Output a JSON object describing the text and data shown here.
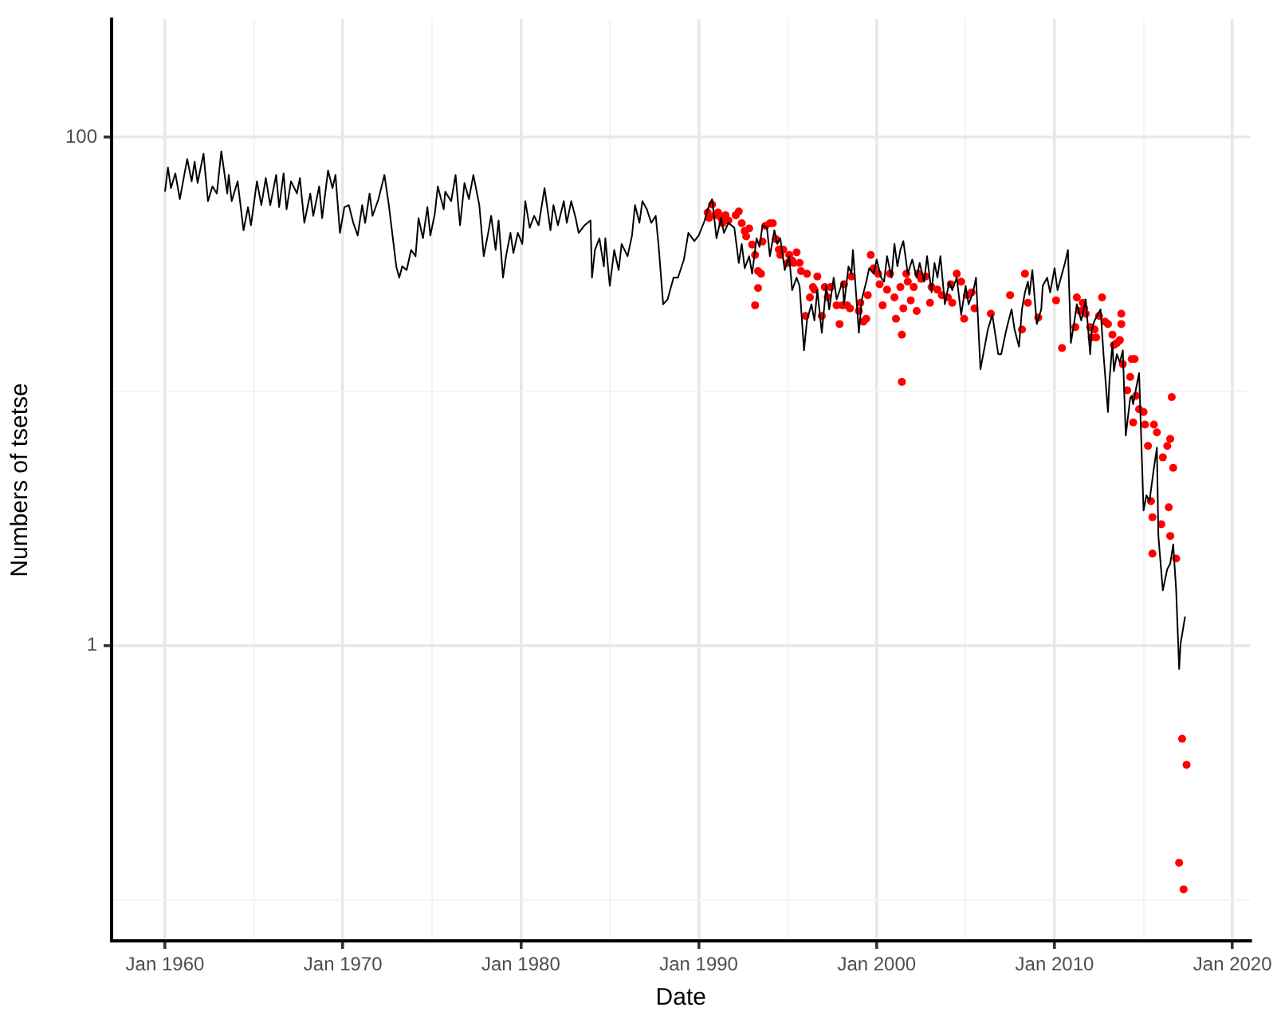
{
  "chart_data": {
    "type": "line",
    "xlabel": "Date",
    "ylabel": "Numbers of tsetse",
    "log": "y",
    "grid": true,
    "legend": false,
    "xlim": [
      "1957-01",
      "2021-01"
    ],
    "ylim": [
      0.069,
      291
    ],
    "xticks": [
      {
        "value": "1960-01",
        "label": "Jan 1960"
      },
      {
        "value": "1965-01",
        "label": null
      },
      {
        "value": "1970-01",
        "label": "Jan 1970"
      },
      {
        "value": "1975-01",
        "label": null
      },
      {
        "value": "1980-01",
        "label": "Jan 1980"
      },
      {
        "value": "1985-01",
        "label": null
      },
      {
        "value": "1990-01",
        "label": "Jan 1990"
      },
      {
        "value": "1995-01",
        "label": null
      },
      {
        "value": "2000-01",
        "label": "Jan 2000"
      },
      {
        "value": "2005-01",
        "label": null
      },
      {
        "value": "2010-01",
        "label": "Jan 2010"
      },
      {
        "value": "2015-01",
        "label": null
      },
      {
        "value": "2020-01",
        "label": "Jan 2020"
      }
    ],
    "yticks": [
      {
        "value": 0.1,
        "label": null
      },
      1,
      {
        "value": 10,
        "label": null
      },
      100
    ],
    "series": [
      {
        "type": "line",
        "color": "#000000",
        "marker": "none",
        "line_style": "solid",
        "x": [
          "1960-01",
          "1960-03",
          "1960-05",
          "1960-08",
          "1960-11",
          "1961-04",
          "1961-07",
          "1961-09",
          "1961-11",
          "1962-03",
          "1962-06",
          "1962-09",
          "1962-12",
          "1963-03",
          "1963-07",
          "1963-08",
          "1963-10",
          "1964-02",
          "1964-06",
          "1964-09",
          "1964-11",
          "1965-03",
          "1965-06",
          "1965-09",
          "1965-12",
          "1966-04",
          "1966-06",
          "1966-09",
          "1966-11",
          "1967-02",
          "1967-06",
          "1967-08",
          "1967-11",
          "1968-03",
          "1968-05",
          "1968-09",
          "1968-11",
          "1969-03",
          "1969-06",
          "1969-08",
          "1969-11",
          "1970-02",
          "1970-05",
          "1970-08",
          "1970-11",
          "1971-02",
          "1971-04",
          "1971-07",
          "1971-09",
          "1972-01",
          "1972-05",
          "1972-08",
          "1973-01",
          "1973-03",
          "1973-05",
          "1973-08",
          "1973-11",
          "1974-02",
          "1974-04",
          "1974-07",
          "1974-10",
          "1974-12",
          "1975-03",
          "1975-05",
          "1975-09",
          "1975-10",
          "1976-02",
          "1976-05",
          "1976-08",
          "1976-11",
          "1977-02",
          "1977-05",
          "1977-09",
          "1977-12",
          "1978-03",
          "1978-05",
          "1978-08",
          "1978-10",
          "1979-01",
          "1979-03",
          "1979-06",
          "1979-08",
          "1979-11",
          "1980-02",
          "1980-04",
          "1980-07",
          "1980-10",
          "1981-01",
          "1981-05",
          "1981-09",
          "1981-11",
          "1982-02",
          "1982-06",
          "1982-08",
          "1982-11",
          "1983-02",
          "1983-04",
          "1983-08",
          "1983-12",
          "1984-01",
          "1984-03",
          "1984-06",
          "1984-09",
          "1984-10",
          "1985-01",
          "1985-04",
          "1985-07",
          "1985-09",
          "1986-01",
          "1986-04",
          "1986-06",
          "1986-09",
          "1986-11",
          "1987-02",
          "1987-05",
          "1987-08",
          "1987-10",
          "1988-01",
          "1988-04",
          "1988-08",
          "1988-11",
          "1989-03",
          "1989-06",
          "1989-10",
          "1990-01",
          "1990-05",
          "1990-07",
          "1990-10",
          "1991-01",
          "1991-04",
          "1991-06",
          "1991-09",
          "1992-01",
          "1992-04",
          "1992-06",
          "1992-08",
          "1992-11",
          "1993-01",
          "1993-04",
          "1993-06",
          "1993-08",
          "1993-11",
          "1994-01",
          "1994-04",
          "1994-06",
          "1994-08",
          "1994-11",
          "1995-02",
          "1995-04",
          "1995-07",
          "1995-09",
          "1995-12",
          "1996-02",
          "1996-05",
          "1996-07",
          "1996-09",
          "1996-12",
          "1997-03",
          "1997-05",
          "1997-08",
          "1997-10",
          "1998-02",
          "1998-03",
          "1998-06",
          "1998-08",
          "1998-09",
          "1999-01",
          "1999-03",
          "1999-06",
          "1999-08",
          "1999-11",
          "2000-01",
          "2000-04",
          "2000-06",
          "2000-08",
          "2000-11",
          "2001-01",
          "2001-03",
          "2001-05",
          "2001-07",
          "2001-10",
          "2002-01",
          "2002-04",
          "2002-06",
          "2002-09",
          "2002-11",
          "2003-02",
          "2003-04",
          "2003-06",
          "2003-08",
          "2003-11",
          "2004-02",
          "2004-04",
          "2004-07",
          "2004-10",
          "2005-01",
          "2005-03",
          "2005-06",
          "2005-08",
          "2005-11",
          "2006-04",
          "2006-07",
          "2006-11",
          "2007-01",
          "2007-04",
          "2007-06",
          "2007-08",
          "2007-10",
          "2008-01",
          "2008-03",
          "2008-05",
          "2008-07",
          "2008-08",
          "2008-10",
          "2009-01",
          "2009-04",
          "2009-05",
          "2009-08",
          "2009-10",
          "2010-01",
          "2010-03",
          "2010-06",
          "2010-08",
          "2010-10",
          "2010-12",
          "2011-03",
          "2011-04",
          "2011-07",
          "2011-10",
          "2012-01",
          "2012-02",
          "2012-04",
          "2012-08",
          "2012-10",
          "2013-01",
          "2013-02",
          "2013-04",
          "2013-05",
          "2013-07",
          "2013-09",
          "2013-11",
          "2014-01",
          "2014-04",
          "2014-05",
          "2014-06",
          "2014-08",
          "2014-10",
          "2015-01",
          "2015-03",
          "2015-05",
          "2015-08",
          "2015-10",
          "2015-11",
          "2016-02",
          "2016-05",
          "2016-07",
          "2016-09",
          "2016-11",
          "2017-01",
          "2017-02",
          "2017-05"
        ],
        "values": [
          61,
          76,
          63,
          72,
          57,
          82,
          67,
          80,
          66,
          86,
          56,
          64,
          60,
          88,
          60,
          71,
          56,
          67,
          43,
          53,
          45,
          67,
          54,
          69,
          54,
          71,
          53,
          72,
          52,
          67,
          60,
          69,
          46,
          60,
          49,
          64,
          48,
          74,
          63,
          71,
          42,
          53,
          54,
          46,
          41,
          54,
          46,
          60,
          49,
          57,
          71,
          54,
          31,
          28,
          31,
          30,
          36,
          34,
          48,
          40,
          53,
          41,
          50,
          64,
          52,
          61,
          56,
          71,
          45,
          66,
          57,
          71,
          54,
          34,
          42,
          49,
          36,
          47,
          28,
          34,
          42,
          35,
          42,
          38,
          56,
          44,
          49,
          45,
          63,
          43,
          54,
          45,
          56,
          46,
          56,
          48,
          42,
          45,
          47,
          28,
          36,
          40,
          31,
          40,
          26,
          36,
          30,
          38,
          34,
          41,
          54,
          46,
          56,
          52,
          46,
          49,
          37,
          22,
          23,
          28,
          28,
          33,
          42,
          39,
          41,
          47,
          52,
          57,
          40,
          48,
          42,
          46,
          44,
          32,
          38,
          30.5,
          34,
          29,
          40,
          37,
          45,
          44,
          34,
          43,
          38,
          40,
          30,
          34,
          25,
          28,
          26,
          14.5,
          19,
          22,
          19,
          25,
          17,
          26,
          21,
          28,
          23,
          27,
          22,
          31,
          29,
          36,
          17,
          23,
          27,
          30.5,
          29,
          33,
          28,
          27,
          34,
          28,
          38,
          31,
          36,
          39,
          29,
          33,
          28,
          32,
          27,
          34,
          24.5,
          32,
          28,
          34,
          22,
          27,
          25,
          28,
          20,
          26,
          22,
          24.5,
          28,
          12.2,
          17.5,
          20,
          14,
          14,
          17,
          19,
          21,
          17.5,
          15,
          21,
          24.5,
          27,
          24,
          30,
          18.4,
          21,
          26,
          28,
          24.5,
          30.5,
          25,
          29,
          32,
          36,
          15.5,
          20,
          22,
          19,
          23,
          14,
          17.5,
          19,
          21,
          14,
          8.3,
          11,
          15.5,
          12,
          14,
          13,
          14.5,
          6.7,
          9.4,
          9.6,
          8.9,
          10.3,
          11.8,
          3.4,
          3.9,
          3.7,
          5.0,
          6.0,
          2.7,
          1.65,
          2.0,
          2.1,
          2.5,
          1.65,
          0.81,
          1.02,
          1.3
        ]
      },
      {
        "type": "scatter",
        "color": "#ff0000",
        "marker": "circle",
        "x": [
          "1990-07",
          "1990-08",
          "1990-10",
          "1990-12",
          "1991-02",
          "1991-04",
          "1991-05",
          "1991-07",
          "1991-09",
          "1992-02",
          "1992-04",
          "1992-06",
          "1992-08",
          "1992-09",
          "1992-11",
          "1993-01",
          "1993-03",
          "1993-05",
          "1993-07",
          "1993-03",
          "1993-05",
          "1993-08",
          "1993-10",
          "1994-01",
          "1994-03",
          "1994-05",
          "1994-07",
          "1994-08",
          "1994-10",
          "1995-01",
          "1995-02",
          "1995-04",
          "1995-05",
          "1995-07",
          "1995-09",
          "1995-10",
          "1996-01",
          "1996-02",
          "1996-04",
          "1996-06",
          "1996-07",
          "1996-09",
          "1996-12",
          "1997-02",
          "1997-04",
          "1997-06",
          "1997-10",
          "1997-12",
          "1998-02",
          "1998-03",
          "1998-05",
          "1998-07",
          "1998-08",
          "1999-01",
          "1999-04",
          "1999-06",
          "1999-02",
          "1999-07",
          "1999-09",
          "1999-11",
          "2000-02",
          "2000-03",
          "2000-05",
          "2000-08",
          "2000-10",
          "2001-01",
          "2001-02",
          "2001-05",
          "2001-06",
          "2001-07",
          "2001-06",
          "2001-09",
          "2001-10",
          "2001-12",
          "2002-02",
          "2002-04",
          "2002-05",
          "2002-07",
          "2002-10",
          "2003-01",
          "2003-02",
          "2003-06",
          "2003-09",
          "2004-01",
          "2004-03",
          "2004-04",
          "2004-07",
          "2004-10",
          "2004-12",
          "2005-02",
          "2005-05",
          "2005-07",
          "2006-06",
          "2007-07",
          "2008-03",
          "2008-05",
          "2008-07",
          "2009-02",
          "2010-02",
          "2010-06",
          "2011-03",
          "2011-04",
          "2011-06",
          "2011-08",
          "2011-09",
          "2011-10",
          "2012-01",
          "2012-02",
          "2012-04",
          "2012-05",
          "2012-07",
          "2012-09",
          "2012-11",
          "2013-01",
          "2013-04",
          "2013-05",
          "2013-07",
          "2013-09",
          "2013-10",
          "2013-10",
          "2013-11",
          "2014-02",
          "2014-04",
          "2014-05",
          "2014-07",
          "2014-08",
          "2014-10",
          "2015-01",
          "2014-06",
          "2015-02",
          "2015-04",
          "2015-08",
          "2015-10",
          "2016-02",
          "2016-05",
          "2016-07",
          "2016-09",
          "2016-08",
          "2015-06",
          "2015-07",
          "2015-07",
          "2016-01",
          "2016-06",
          "2016-07",
          "2016-11",
          "2017-03",
          "2017-06",
          "2017-01",
          "2017-04"
        ],
        "values": [
          50.5,
          48.1,
          54.3,
          49.3,
          50.5,
          48.1,
          45.8,
          49.3,
          47.0,
          49.3,
          51,
          45.8,
          42.7,
          40.7,
          43.7,
          37.8,
          34.4,
          29.7,
          29.0,
          21.8,
          25.5,
          38.8,
          44.8,
          45.8,
          45.8,
          39.7,
          36.1,
          34.4,
          36.1,
          32.0,
          34.4,
          32.7,
          32.0,
          35.2,
          32.0,
          29.7,
          19.8,
          29.0,
          23.4,
          25.7,
          25.1,
          28.3,
          19.8,
          25.7,
          23.4,
          25.7,
          21.8,
          18.4,
          21.8,
          26.4,
          21.8,
          21.2,
          28.3,
          20.7,
          18.8,
          19.3,
          22.3,
          23.9,
          34.4,
          30.5,
          29.0,
          26.4,
          21.8,
          25.1,
          29.0,
          23.4,
          19.3,
          25.7,
          16.7,
          21.2,
          10.9,
          29.0,
          27.0,
          22.8,
          25.7,
          20.7,
          29.0,
          27.7,
          28.3,
          22.3,
          25.7,
          25.1,
          23.9,
          23.4,
          26.4,
          22.3,
          29.0,
          27.0,
          19.3,
          23.9,
          24.5,
          21.2,
          20.2,
          23.9,
          17.5,
          29.0,
          22.3,
          19.5,
          22.8,
          14.8,
          17.9,
          23.4,
          20.7,
          22.3,
          21.2,
          20.2,
          17.9,
          16.3,
          17.5,
          16.3,
          19.8,
          23.4,
          18.8,
          18.4,
          16.7,
          15.2,
          15.5,
          15.9,
          20.2,
          18.4,
          12.8,
          10.1,
          11.4,
          13.4,
          13.4,
          9.6,
          8.5,
          8.3,
          7.55,
          7.4,
          6.1,
          7.4,
          6.9,
          5.5,
          6.1,
          6.5,
          5.0,
          9.5,
          3.7,
          3.2,
          2.3,
          3.0,
          3.5,
          2.7,
          2.2,
          0.43,
          0.34,
          0.14,
          0.11
        ]
      }
    ]
  }
}
